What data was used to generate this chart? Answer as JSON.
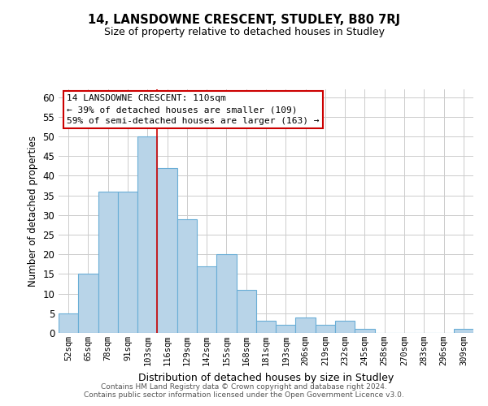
{
  "title": "14, LANSDOWNE CRESCENT, STUDLEY, B80 7RJ",
  "subtitle": "Size of property relative to detached houses in Studley",
  "xlabel": "Distribution of detached houses by size in Studley",
  "ylabel": "Number of detached properties",
  "bar_labels": [
    "52sqm",
    "65sqm",
    "78sqm",
    "91sqm",
    "103sqm",
    "116sqm",
    "129sqm",
    "142sqm",
    "155sqm",
    "168sqm",
    "181sqm",
    "193sqm",
    "206sqm",
    "219sqm",
    "232sqm",
    "245sqm",
    "258sqm",
    "270sqm",
    "283sqm",
    "296sqm",
    "309sqm"
  ],
  "bar_values": [
    5,
    15,
    36,
    36,
    50,
    42,
    29,
    17,
    20,
    11,
    3,
    2,
    4,
    2,
    3,
    1,
    0,
    0,
    0,
    0,
    1
  ],
  "bar_color": "#b8d4e8",
  "bar_edge_color": "#6aaed6",
  "ylim": [
    0,
    62
  ],
  "yticks": [
    0,
    5,
    10,
    15,
    20,
    25,
    30,
    35,
    40,
    45,
    50,
    55,
    60
  ],
  "property_line_label": "14 LANSDOWNE CRESCENT: 110sqm",
  "annotation_line1": "← 39% of detached houses are smaller (109)",
  "annotation_line2": "59% of semi-detached houses are larger (163) →",
  "annotation_box_color": "#ffffff",
  "annotation_box_edge": "#cc0000",
  "footer1": "Contains HM Land Registry data © Crown copyright and database right 2024.",
  "footer2": "Contains public sector information licensed under the Open Government Licence v3.0.",
  "background_color": "#ffffff",
  "grid_color": "#cccccc"
}
